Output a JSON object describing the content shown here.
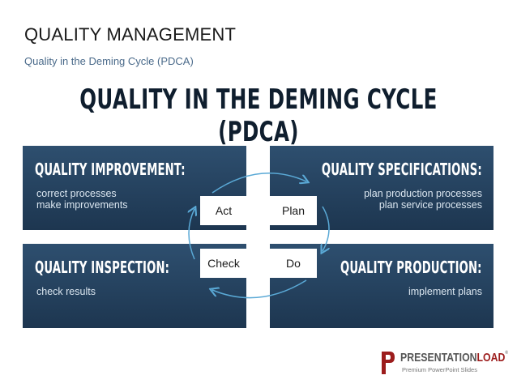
{
  "header": {
    "title": "QUALITY MANAGEMENT",
    "subtitle": "Quality in the Deming Cycle (PDCA)"
  },
  "main_title": "QUALITY IN THE DEMING CYCLE (PDCA)",
  "panels": {
    "top_left": {
      "heading": "QUALITY IMPROVEMENT:",
      "lines": [
        "correct processes",
        "make improvements"
      ]
    },
    "top_right": {
      "heading": "QUALITY SPECIFICATIONS:",
      "lines": [
        "plan production processes",
        "plan service processes"
      ]
    },
    "bottom_left": {
      "heading": "QUALITY INSPECTION:",
      "lines": [
        "check results"
      ]
    },
    "bottom_right": {
      "heading": "QUALITY PRODUCTION:",
      "lines": [
        "implement plans"
      ]
    }
  },
  "cycle": {
    "act": "Act",
    "plan": "Plan",
    "check": "Check",
    "do": "Do"
  },
  "logo": {
    "word_main": "PRESENTATION",
    "word_accent": "LOAD",
    "trademark": "®",
    "tagline": "Premium PowerPoint Slides"
  },
  "colors": {
    "panel_top": "#2e4f6f",
    "panel_bottom": "#1d3650",
    "arrow": "#5aa9d6",
    "logo_accent": "#9c1c1c"
  }
}
